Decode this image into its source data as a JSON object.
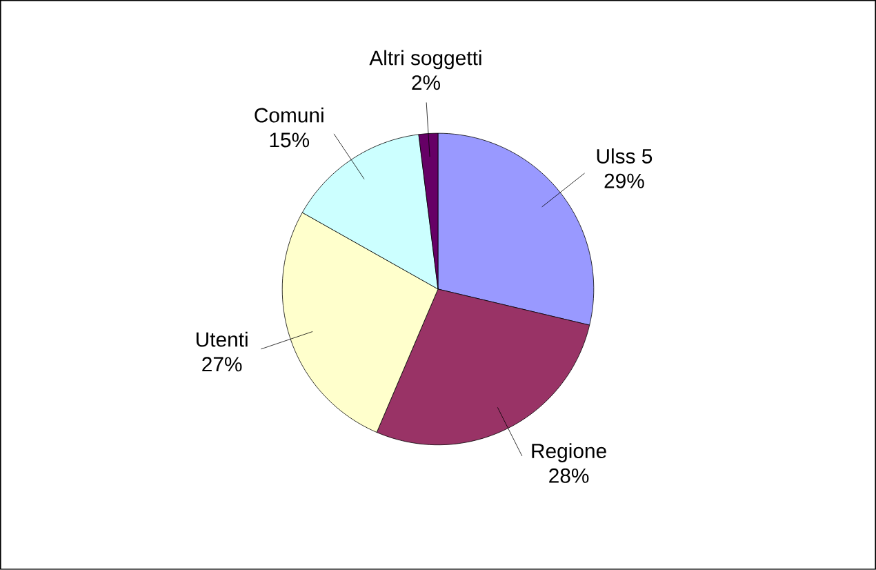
{
  "chart_data": {
    "type": "pie",
    "categories": [
      "Ulss 5",
      "Regione",
      "Utenti",
      "Comuni",
      "Altri soggetti"
    ],
    "values": [
      29,
      28,
      27,
      15,
      2
    ],
    "value_labels": [
      "29%",
      "28%",
      "27%",
      "15%",
      "2%"
    ],
    "colors": [
      "#9999ff",
      "#993366",
      "#ffffcc",
      "#ccffff",
      "#660066"
    ]
  }
}
